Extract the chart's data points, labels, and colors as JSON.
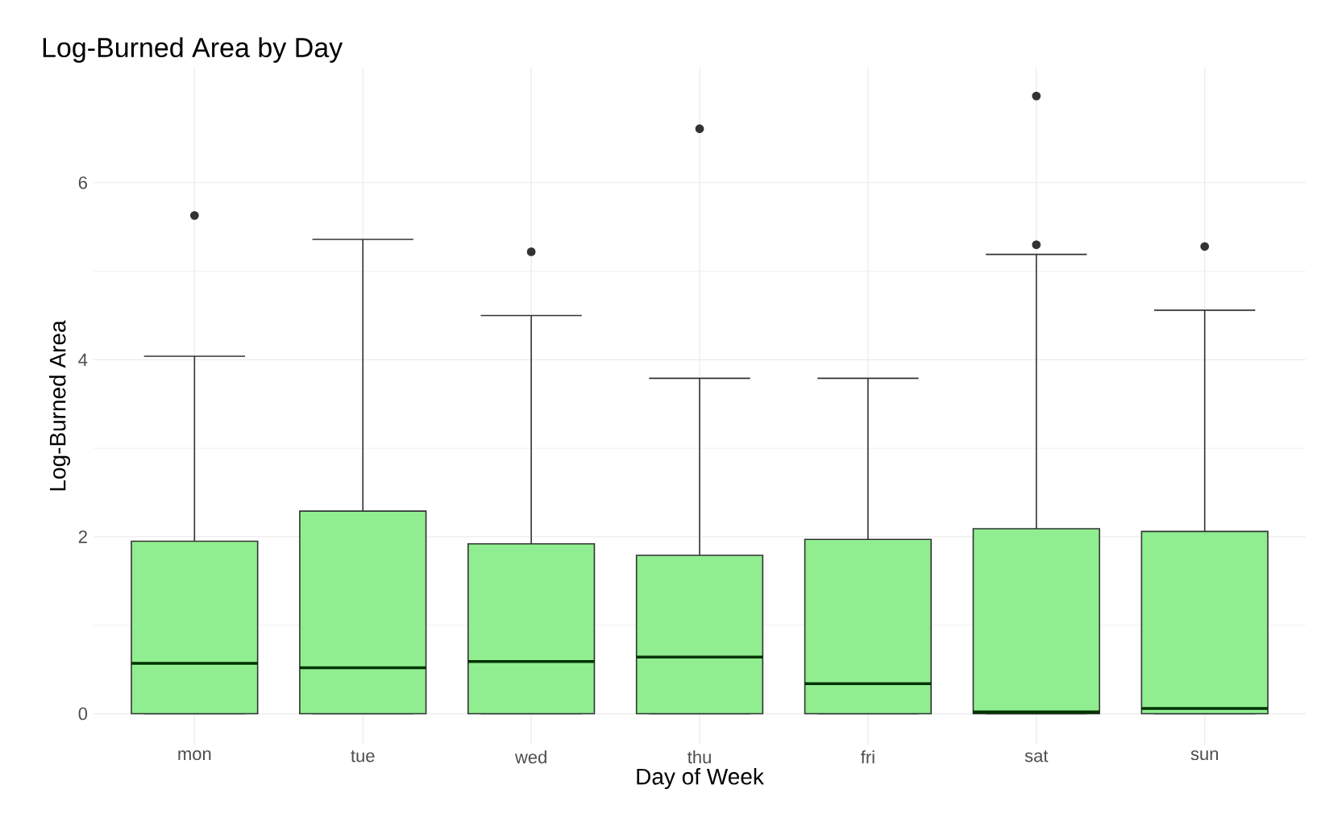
{
  "chart_data": {
    "type": "box",
    "title": "Log-Burned Area by Day",
    "xlabel": "Day of Week",
    "ylabel": "Log-Burned Area",
    "categories": [
      "mon",
      "tue",
      "wed",
      "thu",
      "fri",
      "sat",
      "sun"
    ],
    "color": "#90ee90",
    "boxes": [
      {
        "low": 0,
        "q1": 0,
        "median": 0.57,
        "q3": 1.95,
        "high": 4.04,
        "outliers": [
          5.63
        ]
      },
      {
        "low": 0,
        "q1": 0,
        "median": 0.52,
        "q3": 2.29,
        "high": 5.36
      },
      {
        "low": 0,
        "q1": 0,
        "median": 0.59,
        "q3": 1.92,
        "high": 4.5,
        "outliers": [
          5.22
        ]
      },
      {
        "low": 0,
        "q1": 0,
        "median": 0.64,
        "q3": 1.79,
        "high": 3.79,
        "outliers": [
          6.61
        ]
      },
      {
        "low": 0,
        "q1": 0,
        "median": 0.34,
        "q3": 1.97,
        "high": 3.79
      },
      {
        "low": 0,
        "q1": 0,
        "median": 0.02,
        "q3": 2.09,
        "high": 5.19,
        "outliers": [
          5.3,
          6.98
        ]
      },
      {
        "low": 0,
        "q1": 0,
        "median": 0.06,
        "q3": 2.06,
        "high": 4.56,
        "outliers": [
          5.28
        ]
      }
    ],
    "ylim": [
      -0.35,
      7.3
    ],
    "yticks": [
      0,
      2,
      4,
      6
    ],
    "grid": true
  }
}
